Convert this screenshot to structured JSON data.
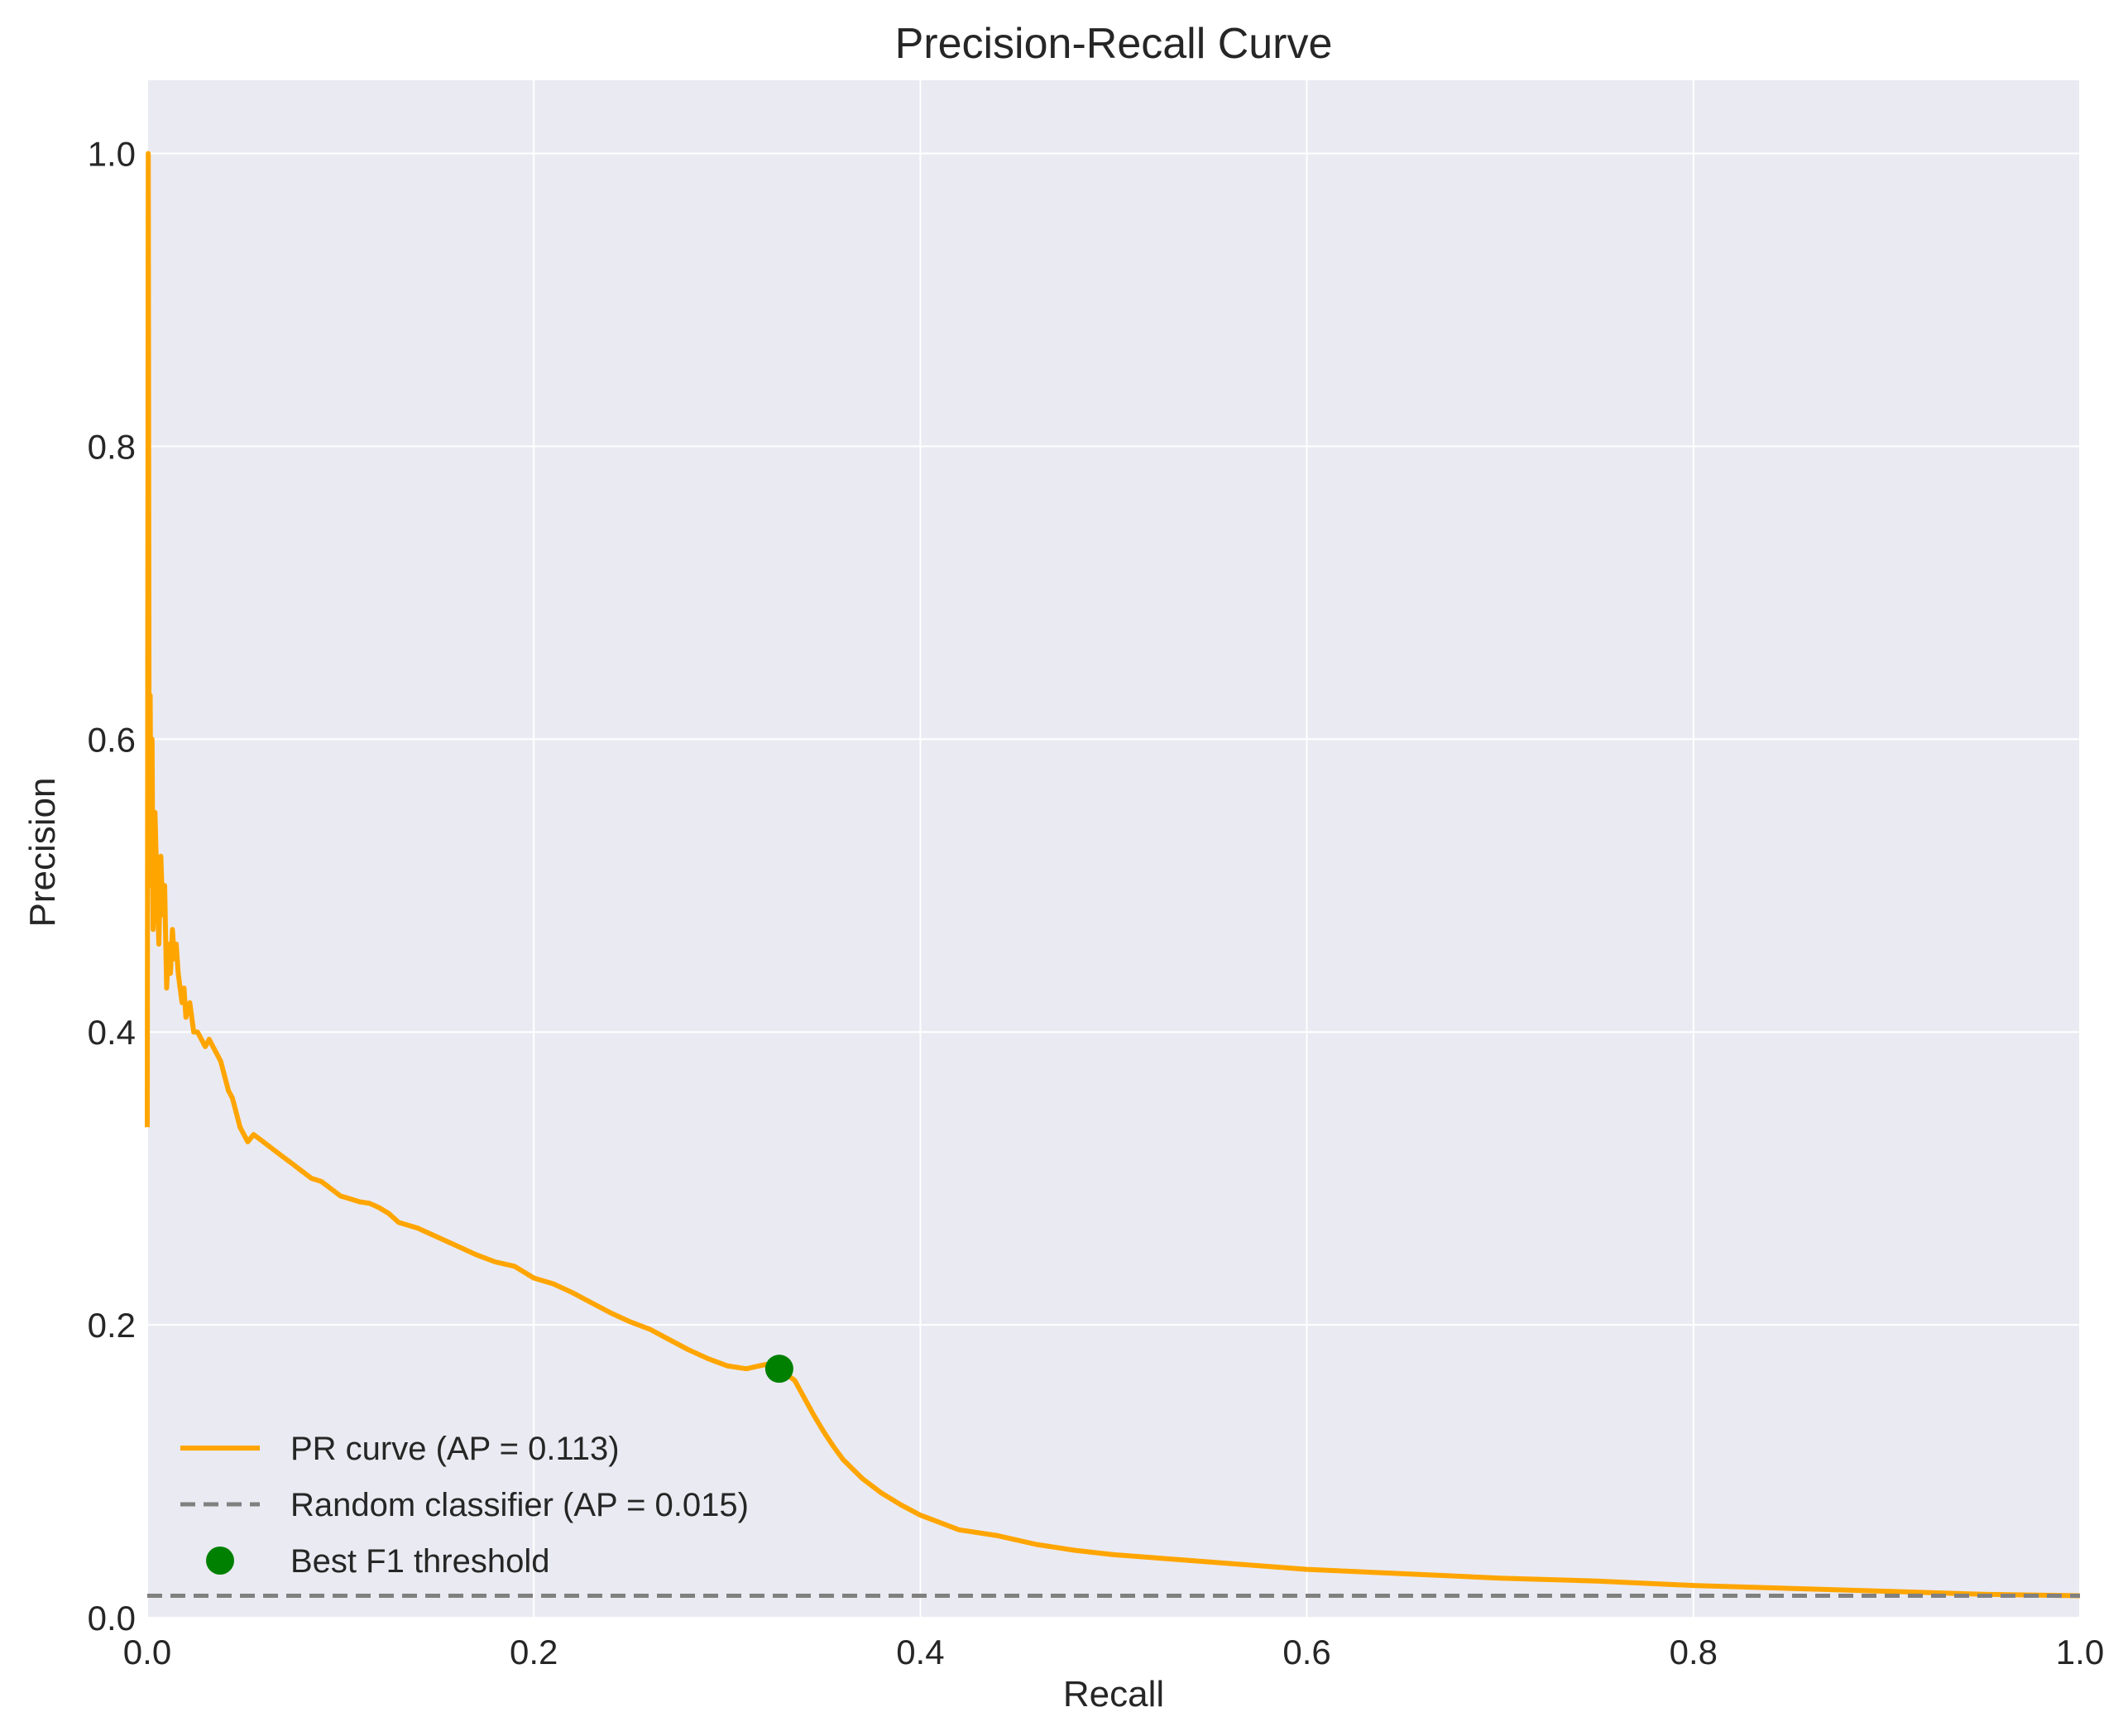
{
  "chart_data": {
    "type": "line",
    "title": "Precision-Recall Curve",
    "xlabel": "Recall",
    "ylabel": "Precision",
    "xlim": [
      0.0,
      1.0
    ],
    "ylim": [
      0.0,
      1.05
    ],
    "x_ticks": [
      "0.0",
      "0.2",
      "0.4",
      "0.6",
      "0.8",
      "1.0"
    ],
    "y_ticks": [
      "0.0",
      "0.2",
      "0.4",
      "0.6",
      "0.8",
      "1.0"
    ],
    "grid": true,
    "legend_position": "lower-left",
    "colors": {
      "background": "#eaeaf2",
      "grid": "#ffffff",
      "pr_curve": "#ffa500",
      "random": "#808080",
      "best_f1": "#008000"
    },
    "series": [
      {
        "name": "PR curve (AP = 0.113)",
        "style": "solid",
        "x": [
          0.0,
          0.0005,
          0.0008,
          0.001,
          0.0015,
          0.002,
          0.0025,
          0.003,
          0.004,
          0.005,
          0.006,
          0.007,
          0.008,
          0.009,
          0.01,
          0.011,
          0.012,
          0.013,
          0.014,
          0.015,
          0.016,
          0.017,
          0.018,
          0.019,
          0.02,
          0.022,
          0.024,
          0.026,
          0.028,
          0.03,
          0.032,
          0.034,
          0.036,
          0.038,
          0.04,
          0.042,
          0.044,
          0.046,
          0.048,
          0.05,
          0.052,
          0.055,
          0.06,
          0.065,
          0.07,
          0.075,
          0.08,
          0.085,
          0.09,
          0.095,
          0.1,
          0.105,
          0.11,
          0.115,
          0.12,
          0.125,
          0.13,
          0.135,
          0.14,
          0.15,
          0.16,
          0.17,
          0.18,
          0.19,
          0.2,
          0.21,
          0.22,
          0.23,
          0.24,
          0.25,
          0.26,
          0.27,
          0.28,
          0.29,
          0.3,
          0.31,
          0.32,
          0.327,
          0.335,
          0.34,
          0.345,
          0.35,
          0.355,
          0.36,
          0.37,
          0.38,
          0.39,
          0.4,
          0.42,
          0.44,
          0.46,
          0.48,
          0.5,
          0.52,
          0.55,
          0.6,
          0.65,
          0.7,
          0.75,
          0.8,
          0.85,
          0.9,
          0.95,
          1.0
        ],
        "y": [
          0.335,
          1.0,
          0.7,
          0.55,
          0.63,
          0.5,
          0.6,
          0.47,
          0.55,
          0.5,
          0.46,
          0.52,
          0.48,
          0.5,
          0.43,
          0.46,
          0.44,
          0.47,
          0.45,
          0.46,
          0.44,
          0.43,
          0.42,
          0.43,
          0.41,
          0.42,
          0.4,
          0.4,
          0.395,
          0.39,
          0.395,
          0.39,
          0.385,
          0.38,
          0.37,
          0.36,
          0.355,
          0.345,
          0.335,
          0.33,
          0.325,
          0.33,
          0.325,
          0.32,
          0.315,
          0.31,
          0.305,
          0.3,
          0.298,
          0.293,
          0.288,
          0.286,
          0.284,
          0.283,
          0.28,
          0.276,
          0.27,
          0.268,
          0.266,
          0.26,
          0.254,
          0.248,
          0.243,
          0.24,
          0.232,
          0.228,
          0.222,
          0.215,
          0.208,
          0.202,
          0.197,
          0.19,
          0.183,
          0.177,
          0.172,
          0.17,
          0.173,
          0.17,
          0.162,
          0.15,
          0.138,
          0.127,
          0.117,
          0.108,
          0.095,
          0.085,
          0.077,
          0.07,
          0.06,
          0.056,
          0.05,
          0.046,
          0.043,
          0.041,
          0.038,
          0.033,
          0.03,
          0.027,
          0.025,
          0.022,
          0.02,
          0.018,
          0.016,
          0.015
        ]
      },
      {
        "name": "Random classifier (AP = 0.015)",
        "style": "dashed",
        "x": [
          0.0,
          1.0
        ],
        "y": [
          0.015,
          0.015
        ]
      }
    ],
    "points": [
      {
        "name": "Best F1 threshold",
        "x": 0.327,
        "y": 0.17
      }
    ]
  }
}
